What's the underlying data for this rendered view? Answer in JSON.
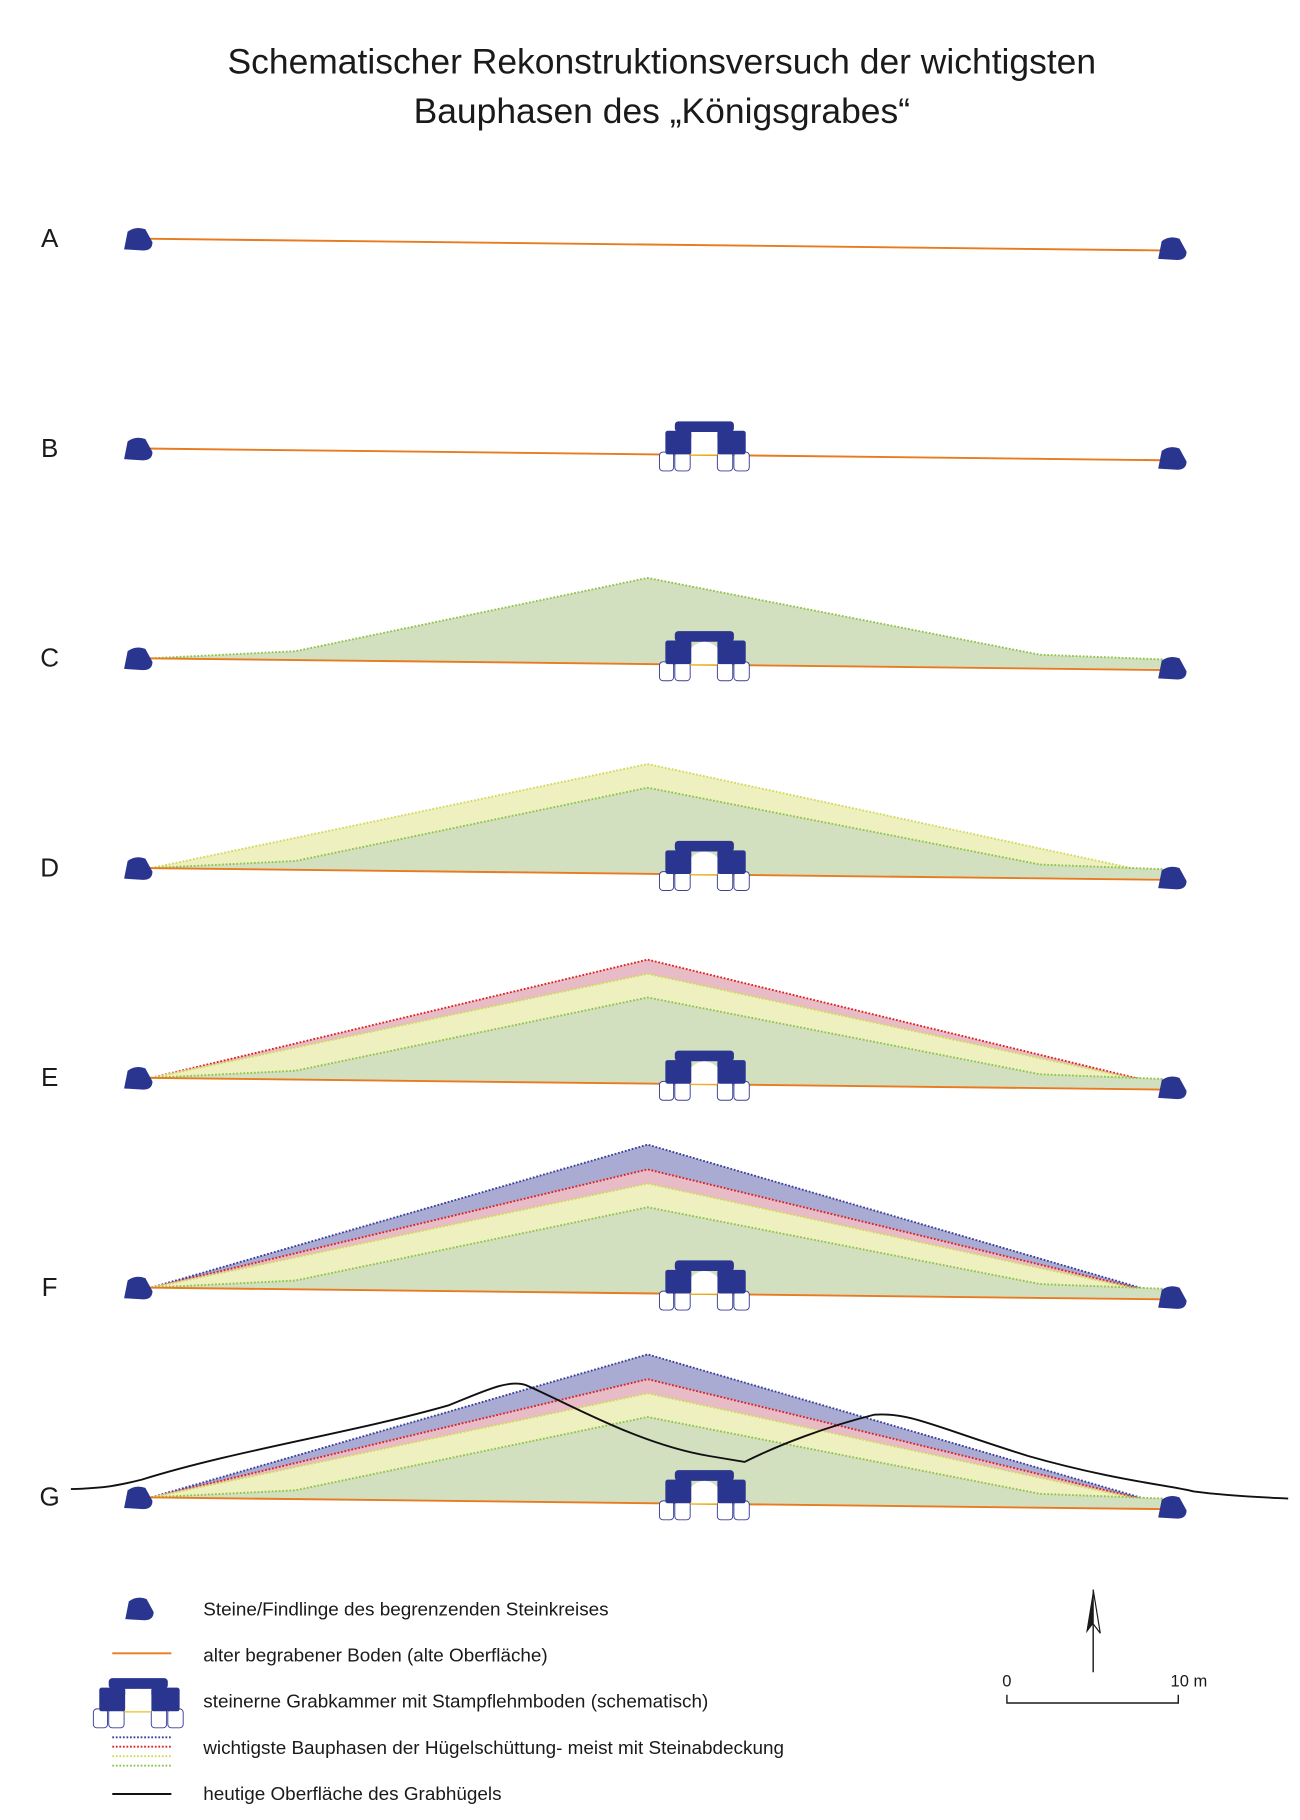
{
  "title": {
    "line1": "Schematischer Rekonstruktionsversuch der wichtigsten",
    "line2": "Bauphasen des „Königsgrabes“"
  },
  "rows": [
    {
      "label": "A"
    },
    {
      "label": "B"
    },
    {
      "label": "C"
    },
    {
      "label": "D"
    },
    {
      "label": "E"
    },
    {
      "label": "F"
    },
    {
      "label": "G"
    }
  ],
  "legend": [
    {
      "text": "Steine/Findlinge des begrenzenden Steinkreises"
    },
    {
      "text": "alter begrabener Boden (alte Oberfläche)"
    },
    {
      "text": "steinerne Grabkammer mit Stampflehmboden (schematisch)"
    },
    {
      "text": "wichtigste Bauphasen der Hügelschüttung- meist mit Steinabdeckung"
    },
    {
      "text": "heutige Oberfläche des Grabhügels"
    }
  ],
  "scale": {
    "start": "0",
    "end": "10 m"
  }
}
